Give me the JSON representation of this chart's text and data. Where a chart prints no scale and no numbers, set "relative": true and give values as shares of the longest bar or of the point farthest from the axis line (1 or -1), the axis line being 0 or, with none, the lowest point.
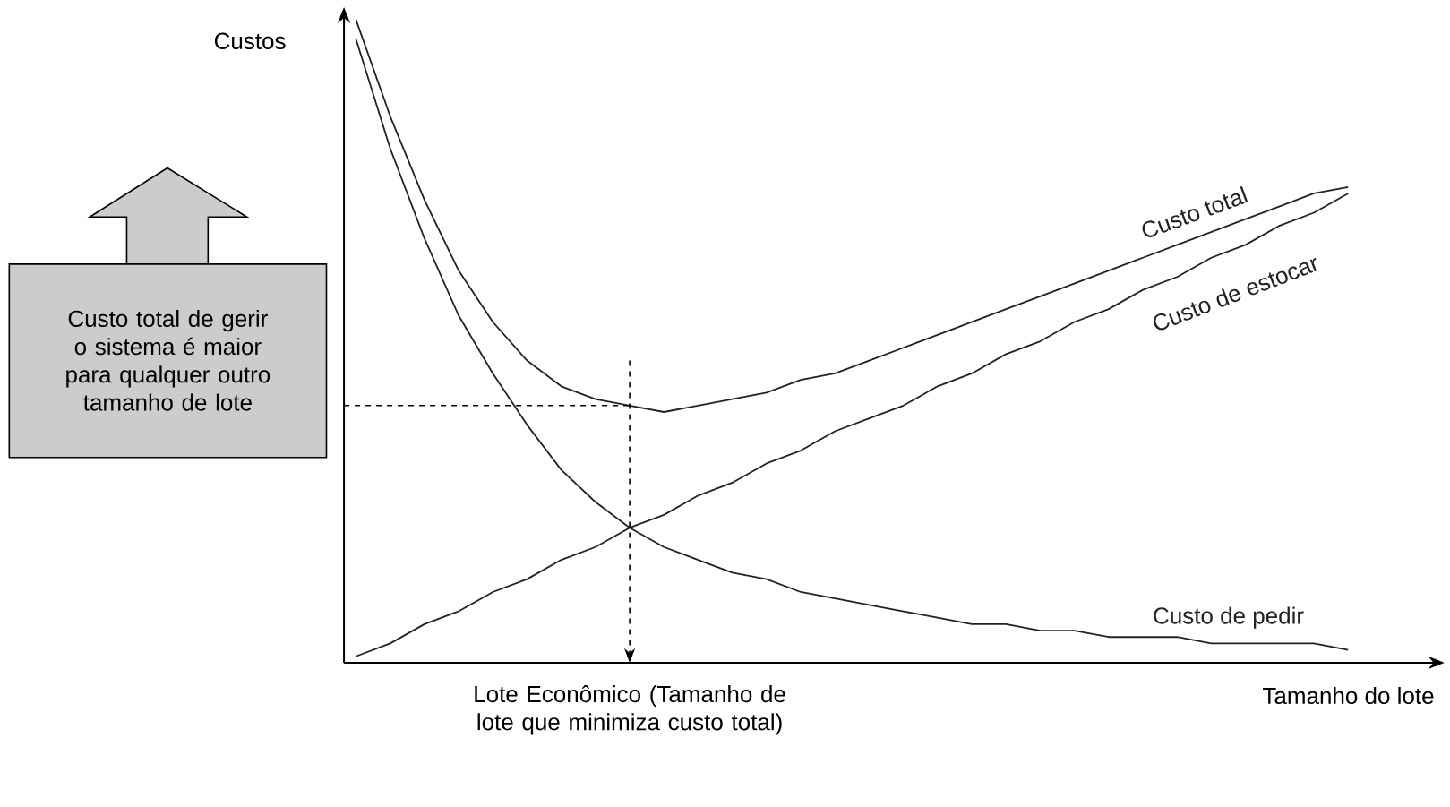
{
  "chart_data": {
    "type": "line",
    "relative": true,
    "xlabel": "Tamanho do lote",
    "ylabel": "Custos",
    "categories": [
      null,
      null,
      null,
      null,
      null,
      null,
      null,
      null,
      null,
      null,
      null,
      null,
      null,
      null,
      null,
      null,
      null,
      null,
      null,
      null,
      null,
      null,
      null,
      null,
      null,
      null,
      null,
      null,
      null,
      null
    ],
    "series": [
      {
        "name": "Custo total",
        "color": "#222222",
        "values": [
          1.0,
          0.85,
          0.72,
          0.61,
          0.53,
          0.47,
          0.43,
          0.41,
          0.4,
          0.39,
          0.4,
          0.41,
          0.42,
          0.44,
          0.45,
          0.47,
          0.49,
          0.51,
          0.53,
          0.55,
          0.57,
          0.59,
          0.61,
          0.63,
          0.65,
          0.67,
          0.69,
          0.71,
          0.73,
          0.74
        ]
      },
      {
        "name": "Custo de estocar",
        "color": "#222222",
        "values": [
          0.01,
          0.03,
          0.06,
          0.08,
          0.11,
          0.13,
          0.16,
          0.18,
          0.21,
          0.23,
          0.26,
          0.28,
          0.31,
          0.33,
          0.36,
          0.38,
          0.4,
          0.43,
          0.45,
          0.48,
          0.5,
          0.53,
          0.55,
          0.58,
          0.6,
          0.63,
          0.65,
          0.68,
          0.7,
          0.73
        ]
      },
      {
        "name": "Custo de pedir",
        "color": "#222222",
        "values": [
          0.97,
          0.8,
          0.66,
          0.54,
          0.45,
          0.37,
          0.3,
          0.25,
          0.21,
          0.18,
          0.16,
          0.14,
          0.13,
          0.11,
          0.1,
          0.09,
          0.08,
          0.07,
          0.06,
          0.06,
          0.05,
          0.05,
          0.04,
          0.04,
          0.04,
          0.03,
          0.03,
          0.03,
          0.03,
          0.02
        ]
      }
    ],
    "ref_lines": [
      {
        "axis": "y",
        "value": 0.4,
        "line_style": "dashed"
      }
    ],
    "annotations": [
      "Custo total de gerir o sistema é maior para qualquer outro tamanho de lote",
      "Lote Econômico (Tamanho de lote que minimiza custo total)"
    ],
    "marker": "none",
    "line_style": "solid"
  }
}
